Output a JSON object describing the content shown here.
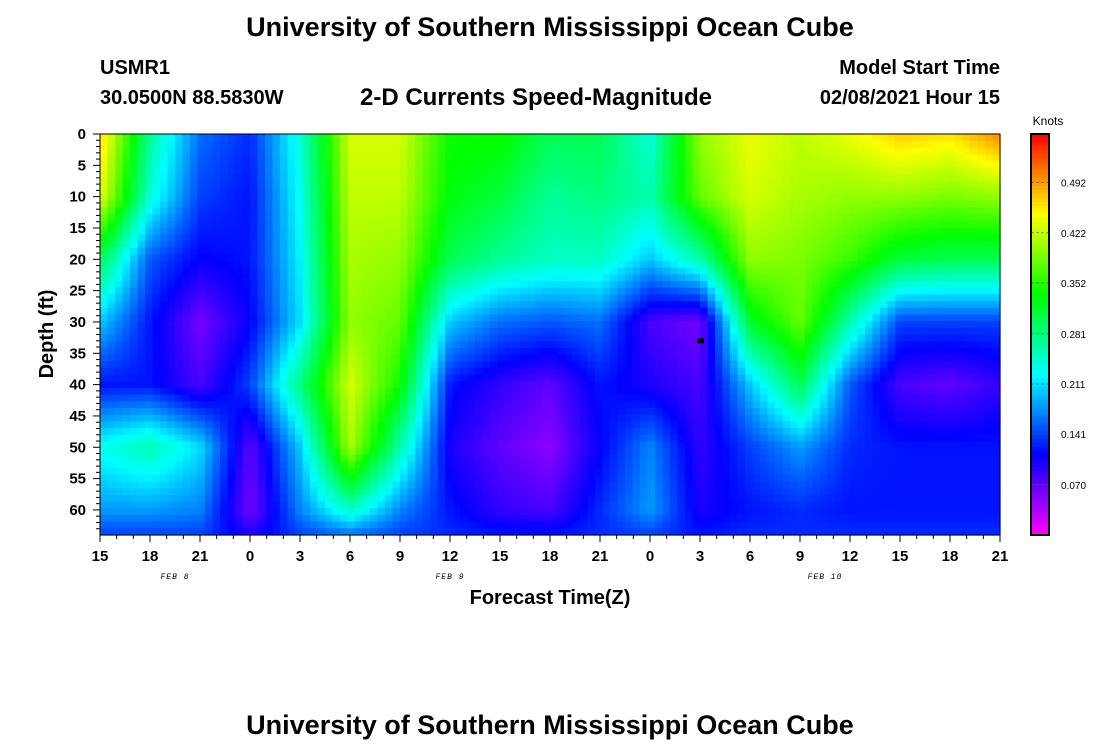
{
  "header": {
    "title": "University of Southern Mississippi Ocean Cube",
    "station": "USMR1",
    "coords": "30.0500N 88.5830W",
    "subtitle": "2-D Currents Speed-Magnitude",
    "model_start_label": "Model Start Time",
    "model_start_value": "02/08/2021 Hour 15"
  },
  "footer": {
    "title": "University of Southern Mississippi Ocean Cube"
  },
  "chart_data": {
    "type": "heatmap",
    "xlabel": "Forecast Time(Z)",
    "ylabel": "Depth (ft)",
    "x_ticks": [
      "15",
      "18",
      "21",
      "0",
      "3",
      "6",
      "9",
      "12",
      "15",
      "18",
      "21",
      "0",
      "3",
      "6",
      "9",
      "12",
      "15",
      "18",
      "21"
    ],
    "day_labels": [
      {
        "text": "FEB 8",
        "tick_index": 1.5
      },
      {
        "text": "FEB 9",
        "tick_index": 7
      },
      {
        "text": "FEB 10",
        "tick_index": 14.5
      }
    ],
    "y_ticks": [
      0,
      5,
      10,
      15,
      20,
      25,
      30,
      35,
      40,
      45,
      50,
      55,
      60
    ],
    "ylim": [
      0,
      64
    ],
    "x_hours": [
      0,
      54
    ],
    "colorbar": {
      "label": "Knots",
      "range": [
        0,
        0.56
      ],
      "tick_labels": [
        "0.492",
        "0.422",
        "0.352",
        "0.281",
        "0.211",
        "0.141",
        "0.070"
      ],
      "tick_values": [
        0.492,
        0.422,
        0.352,
        0.281,
        0.211,
        0.141,
        0.07
      ]
    },
    "grid_times_h": [
      0,
      3,
      6,
      9,
      12,
      15,
      18,
      21,
      24,
      27,
      30,
      33,
      36,
      39,
      42,
      45,
      48,
      51,
      54
    ],
    "grid_depths_ft": [
      0,
      10,
      20,
      30,
      40,
      50,
      60,
      64
    ],
    "values": [
      [
        0.47,
        0.27,
        0.16,
        0.13,
        0.24,
        0.43,
        0.43,
        0.34,
        0.34,
        0.3,
        0.3,
        0.24,
        0.4,
        0.44,
        0.42,
        0.44,
        0.47,
        0.46,
        0.5
      ],
      [
        0.44,
        0.24,
        0.14,
        0.12,
        0.23,
        0.42,
        0.42,
        0.33,
        0.31,
        0.27,
        0.28,
        0.26,
        0.38,
        0.43,
        0.41,
        0.4,
        0.4,
        0.39,
        0.4
      ],
      [
        0.3,
        0.15,
        0.11,
        0.12,
        0.22,
        0.41,
        0.4,
        0.3,
        0.27,
        0.25,
        0.25,
        0.2,
        0.26,
        0.4,
        0.39,
        0.36,
        0.31,
        0.3,
        0.3
      ],
      [
        0.2,
        0.12,
        0.06,
        0.11,
        0.21,
        0.4,
        0.38,
        0.2,
        0.16,
        0.15,
        0.16,
        0.08,
        0.06,
        0.32,
        0.38,
        0.26,
        0.14,
        0.14,
        0.14
      ],
      [
        0.12,
        0.12,
        0.08,
        0.14,
        0.28,
        0.43,
        0.34,
        0.12,
        0.09,
        0.07,
        0.12,
        0.1,
        0.08,
        0.2,
        0.3,
        0.15,
        0.08,
        0.07,
        0.09
      ],
      [
        0.23,
        0.26,
        0.21,
        0.07,
        0.2,
        0.41,
        0.26,
        0.1,
        0.07,
        0.05,
        0.11,
        0.17,
        0.09,
        0.14,
        0.18,
        0.13,
        0.12,
        0.12,
        0.12
      ],
      [
        0.18,
        0.18,
        0.17,
        0.06,
        0.17,
        0.25,
        0.17,
        0.12,
        0.09,
        0.08,
        0.13,
        0.18,
        0.1,
        0.12,
        0.13,
        0.12,
        0.12,
        0.12,
        0.12
      ],
      [
        0.14,
        0.14,
        0.14,
        0.1,
        0.14,
        0.16,
        0.14,
        0.13,
        0.12,
        0.12,
        0.13,
        0.14,
        0.12,
        0.13,
        0.13,
        0.13,
        0.13,
        0.13,
        0.13
      ]
    ],
    "marker": {
      "x_h": 36,
      "depth_ft": 33
    }
  }
}
